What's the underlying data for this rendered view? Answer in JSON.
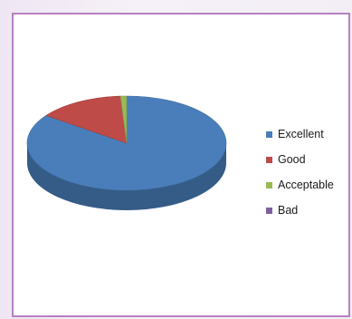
{
  "chart_data": {
    "type": "pie",
    "style": "3d",
    "title": "",
    "categories": [
      "Excellent",
      "Good",
      "Acceptable",
      "Bad"
    ],
    "values": [
      85,
      14,
      1,
      0
    ],
    "colors": [
      "#4a7ebb",
      "#be4b48",
      "#98b954",
      "#7d60a0"
    ],
    "legend_position": "right"
  }
}
